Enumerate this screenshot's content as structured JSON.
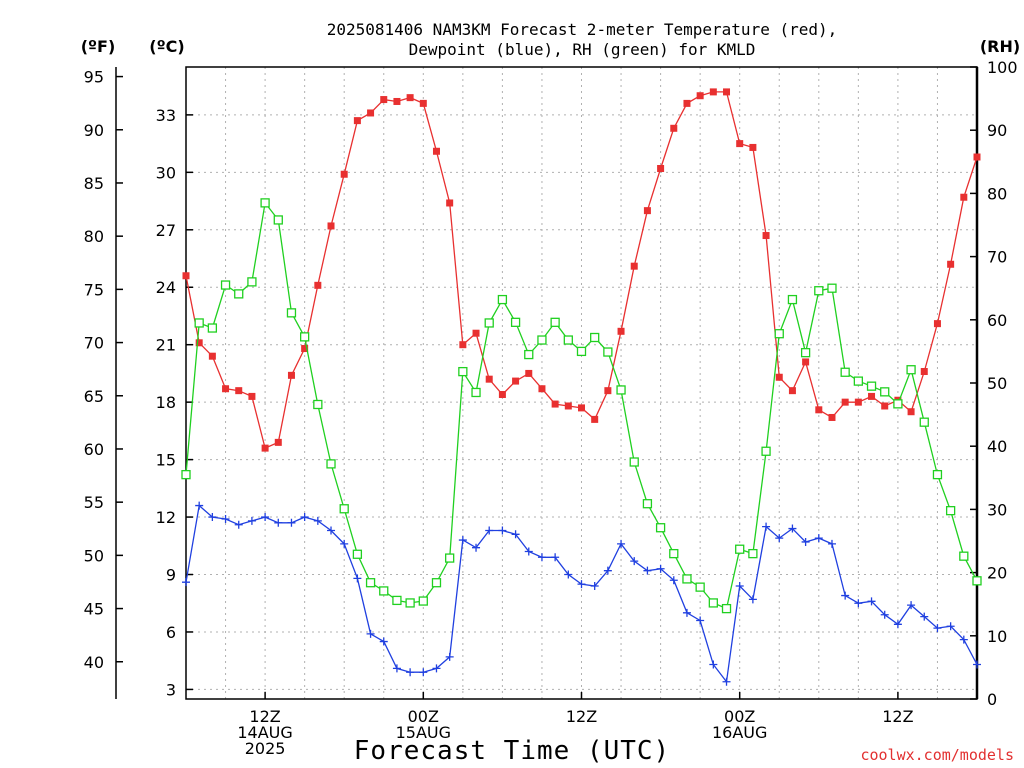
{
  "title_line1": "2025081406 NAM3KM Forecast 2-meter Temperature (red),",
  "title_line2": "Dewpoint (blue), RH (green) for KMLD",
  "credit": "coolwx.com/models",
  "colors": {
    "temperature": "#e83030",
    "dewpoint": "#2040e0",
    "rh": "#20d020",
    "grid": "#b0b0b0"
  },
  "chart_data": {
    "type": "line",
    "xlabel": "Forecast Time (UTC)",
    "x_unit": "hours since 2025-08-14 06Z",
    "xlim": [
      0,
      60
    ],
    "x_ticks": [
      {
        "x": 6,
        "lines": [
          "12Z",
          "14AUG",
          "2025"
        ]
      },
      {
        "x": 18,
        "lines": [
          "00Z",
          "15AUG"
        ]
      },
      {
        "x": 30,
        "lines": [
          "12Z"
        ]
      },
      {
        "x": 42,
        "lines": [
          "00Z",
          "16AUG"
        ]
      },
      {
        "x": 54,
        "lines": [
          "12Z"
        ]
      }
    ],
    "y_celsius": {
      "label": "(ºC)",
      "ticks": [
        3,
        6,
        9,
        12,
        15,
        18,
        21,
        24,
        27,
        30,
        33
      ],
      "ylim": [
        2.5,
        35.5
      ]
    },
    "y_fahrenheit": {
      "label": "(ºF)",
      "ticks": [
        40,
        45,
        50,
        55,
        60,
        65,
        70,
        75,
        80,
        85,
        90,
        95
      ]
    },
    "y_rh": {
      "label": "(RH)",
      "ticks": [
        0,
        10,
        20,
        30,
        40,
        50,
        60,
        70,
        80,
        90,
        100
      ],
      "ylim": [
        0,
        100
      ]
    },
    "grid": true,
    "series": [
      {
        "name": "2-meter Temperature",
        "axis": "celsius",
        "marker": "filled-square",
        "x": [
          0,
          1,
          2,
          3,
          4,
          5,
          6,
          7,
          8,
          9,
          10,
          11,
          12,
          13,
          14,
          15,
          16,
          17,
          18,
          19,
          20,
          21,
          22,
          23,
          24,
          25,
          26,
          27,
          28,
          29,
          30,
          31,
          32,
          33,
          34,
          35,
          36,
          37,
          38,
          39,
          40,
          41,
          42,
          43,
          44,
          45,
          46,
          47,
          48,
          49,
          50,
          51,
          52,
          53,
          54,
          55,
          56,
          57,
          58,
          59,
          60
        ],
        "values": [
          24.6,
          21.1,
          20.4,
          18.7,
          18.6,
          18.3,
          15.6,
          15.9,
          19.4,
          20.8,
          24.1,
          27.2,
          29.9,
          32.7,
          33.1,
          33.8,
          33.7,
          33.9,
          33.6,
          31.1,
          28.4,
          21.0,
          21.6,
          19.2,
          18.4,
          19.1,
          19.5,
          18.7,
          17.9,
          17.8,
          17.7,
          17.1,
          18.6,
          21.7,
          25.1,
          28.0,
          30.2,
          32.3,
          33.6,
          34.0,
          34.2,
          34.2,
          31.5,
          31.3,
          26.7,
          19.3,
          18.6,
          20.1,
          17.6,
          17.2,
          18.0,
          18.0,
          18.3,
          17.8,
          18.1,
          17.5,
          19.6,
          22.1,
          25.2,
          28.7,
          30.8
        ]
      },
      {
        "name": "Dewpoint",
        "axis": "celsius",
        "marker": "plus",
        "x": [
          0,
          1,
          2,
          3,
          4,
          5,
          6,
          7,
          8,
          9,
          10,
          11,
          12,
          13,
          14,
          15,
          16,
          17,
          18,
          19,
          20,
          21,
          22,
          23,
          24,
          25,
          26,
          27,
          28,
          29,
          30,
          31,
          32,
          33,
          34,
          35,
          36,
          37,
          38,
          39,
          40,
          41,
          42,
          43,
          44,
          45,
          46,
          47,
          48,
          49,
          50,
          51,
          52,
          53,
          54,
          55,
          56,
          57,
          58,
          59,
          60
        ],
        "values": [
          8.6,
          12.6,
          12.0,
          11.9,
          11.6,
          11.8,
          12.0,
          11.7,
          11.7,
          12.0,
          11.8,
          11.3,
          10.6,
          8.8,
          5.9,
          5.5,
          4.1,
          3.9,
          3.9,
          4.1,
          4.7,
          10.8,
          10.4,
          11.3,
          11.3,
          11.1,
          10.2,
          9.9,
          9.9,
          9.0,
          8.5,
          8.4,
          9.2,
          10.6,
          9.7,
          9.2,
          9.3,
          8.7,
          7.0,
          6.6,
          4.3,
          3.4,
          8.4,
          7.7,
          11.5,
          10.9,
          11.4,
          10.7,
          10.9,
          10.6,
          7.9,
          7.5,
          7.6,
          6.9,
          6.4,
          7.4,
          6.8,
          6.2,
          6.3,
          5.6,
          4.3
        ]
      },
      {
        "name": "RH",
        "axis": "rh",
        "marker": "open-square",
        "x": [
          0,
          1,
          2,
          3,
          4,
          5,
          6,
          7,
          8,
          9,
          10,
          11,
          12,
          13,
          14,
          15,
          16,
          17,
          18,
          19,
          20,
          21,
          22,
          23,
          24,
          25,
          26,
          27,
          28,
          29,
          30,
          31,
          32,
          33,
          34,
          35,
          36,
          37,
          38,
          39,
          40,
          41,
          42,
          43,
          44,
          45,
          46,
          47,
          48,
          49,
          50,
          51,
          52,
          53,
          54,
          55,
          56,
          57,
          58,
          59,
          60
        ],
        "values": [
          35.5,
          59.5,
          58.7,
          65.5,
          64.1,
          66.0,
          78.5,
          75.8,
          61.1,
          57.3,
          46.6,
          37.2,
          30.1,
          22.9,
          18.4,
          17.1,
          15.6,
          15.2,
          15.5,
          18.4,
          22.3,
          51.8,
          48.5,
          59.5,
          63.2,
          59.6,
          54.5,
          56.8,
          59.6,
          56.8,
          55.0,
          57.2,
          54.9,
          48.9,
          37.5,
          30.9,
          27.1,
          23.0,
          19.0,
          17.7,
          15.2,
          14.3,
          23.7,
          23.0,
          39.2,
          57.8,
          63.2,
          54.8,
          64.6,
          65.0,
          51.7,
          50.3,
          49.5,
          48.6,
          46.7,
          52.1,
          43.8,
          35.5,
          29.8,
          22.6,
          18.7
        ]
      }
    ]
  }
}
